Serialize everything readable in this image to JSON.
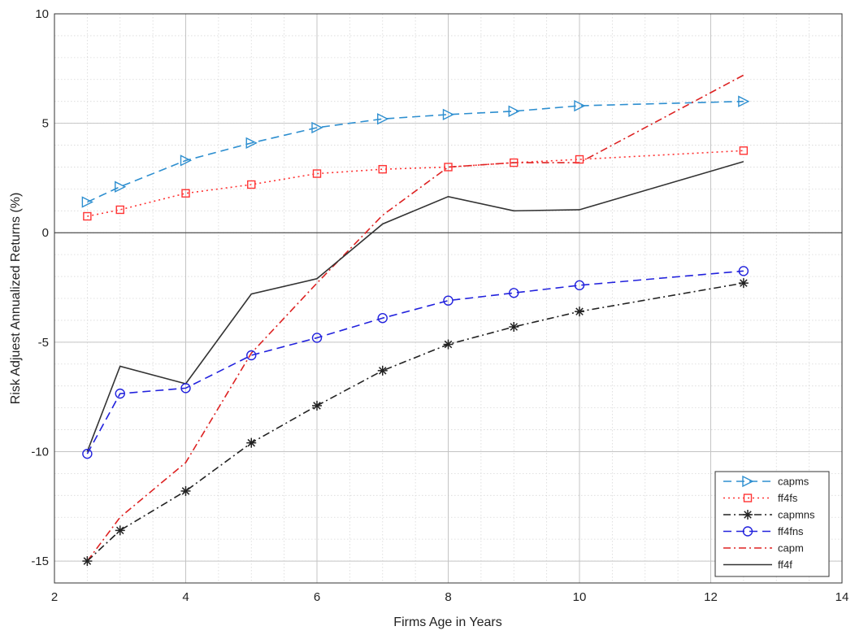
{
  "chart_data": {
    "type": "line",
    "xlabel": "Firms Age in Years",
    "ylabel": "Risk Adjuest Annualized Returns (%)",
    "xlim": [
      2,
      14
    ],
    "ylim": [
      -16,
      10
    ],
    "x_ticks": [
      2,
      4,
      6,
      8,
      10,
      12,
      14
    ],
    "y_ticks": [
      -15,
      -10,
      -5,
      0,
      5,
      10
    ],
    "grid": true,
    "minor_grid": true,
    "zero_line": true,
    "legend_position": "bottom-right",
    "x": [
      2.5,
      3,
      4,
      5,
      6,
      7,
      8,
      9,
      10,
      12.5
    ],
    "series": [
      {
        "name": "capms",
        "color": "#2e8fd0",
        "dash": "dashed",
        "marker": "triangle-right",
        "values": [
          1.4,
          2.1,
          3.3,
          4.1,
          4.8,
          5.2,
          5.4,
          5.55,
          5.8,
          6.0
        ]
      },
      {
        "name": "ff4fs",
        "color": "#ff3333",
        "dash": "dotted",
        "marker": "square",
        "values": [
          0.75,
          1.05,
          1.8,
          2.2,
          2.7,
          2.9,
          3.0,
          3.2,
          3.35,
          3.75
        ]
      },
      {
        "name": "capmns",
        "color": "#222222",
        "dash": "dashdot",
        "marker": "star",
        "values": [
          -15.0,
          -13.6,
          -11.8,
          -9.6,
          -7.9,
          -6.3,
          -5.1,
          -4.3,
          -3.6,
          -2.3
        ]
      },
      {
        "name": "ff4fns",
        "color": "#2222dd",
        "dash": "dashed",
        "marker": "circle",
        "values": [
          -10.1,
          -7.35,
          -7.1,
          -5.6,
          -4.8,
          -3.9,
          -3.1,
          -2.75,
          -2.4,
          -1.75
        ]
      },
      {
        "name": "capm",
        "color": "#dd2222",
        "dash": "dashdot",
        "marker": "none",
        "values": [
          -15.0,
          -13.0,
          -10.5,
          -5.5,
          -2.3,
          0.8,
          3.0,
          3.2,
          3.2,
          7.2
        ]
      },
      {
        "name": "ff4f",
        "color": "#333333",
        "dash": "solid",
        "marker": "none",
        "values": [
          -10.0,
          -6.1,
          -6.9,
          -2.8,
          -2.1,
          0.4,
          1.65,
          1.0,
          1.05,
          3.25
        ]
      }
    ]
  }
}
